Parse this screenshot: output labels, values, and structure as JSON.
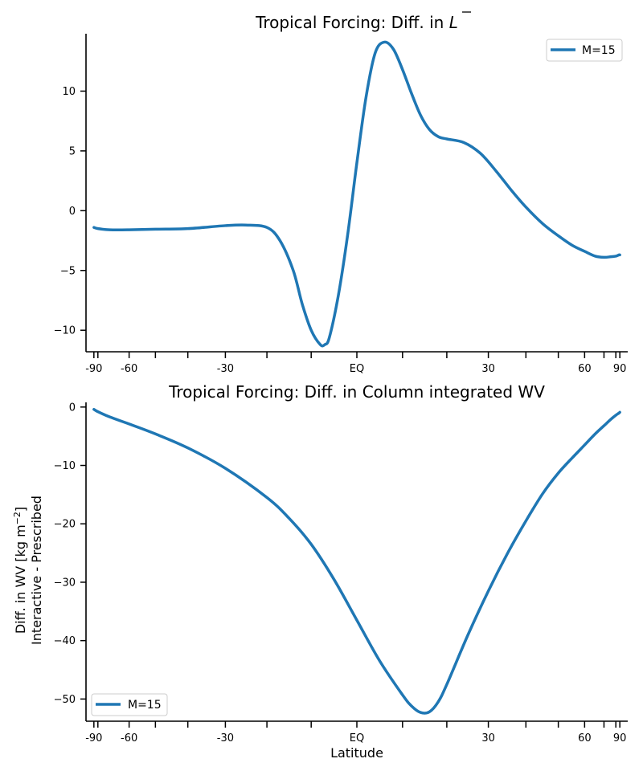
{
  "chart_data": [
    {
      "type": "line",
      "title": "Tropical Forcing: Diff. in ",
      "title_symbol": "L",
      "xlabel": "",
      "ylabel": "",
      "ylim": [
        -11.8,
        14.8
      ],
      "xlim_sine": [
        -1.03,
        1.03
      ],
      "x_scale": "sine of latitude",
      "y_ticks": [
        -10,
        -5,
        0,
        5,
        10
      ],
      "y_tick_labels": [
        "−10",
        "−5",
        "0",
        "5",
        "10"
      ],
      "x_major_ticks": [
        -90,
        -60,
        -30,
        0,
        30,
        60,
        90
      ],
      "x_tick_labels": [
        "-90",
        "-60",
        "-30",
        "EQ",
        "30",
        "60",
        "90"
      ],
      "x_minor_ticks": [
        -80,
        -50,
        -40,
        -20,
        -10,
        10,
        20,
        40,
        50,
        70,
        80
      ],
      "grid": false,
      "legend": {
        "placement": "upper right",
        "entries": [
          "M=15"
        ]
      },
      "series": [
        {
          "name": "M=15",
          "color": "#1f77b4",
          "x": [
            -89,
            -80,
            -70,
            -60,
            -50,
            -40,
            -30,
            -25,
            -20,
            -17,
            -14,
            -12,
            -10,
            -8,
            -7,
            -6,
            -4,
            -2,
            0,
            2,
            4,
            6,
            8,
            10,
            12,
            14,
            16,
            18,
            20,
            24,
            28,
            32,
            36,
            40,
            45,
            50,
            55,
            60,
            65,
            70,
            75,
            80,
            85,
            89
          ],
          "y": [
            -1.4,
            -1.5,
            -1.6,
            -1.6,
            -1.55,
            -1.5,
            -1.25,
            -1.2,
            -1.4,
            -2.5,
            -5.0,
            -7.8,
            -10.0,
            -11.2,
            -11.2,
            -10.6,
            -7.0,
            -2.0,
            4.0,
            9.5,
            13.2,
            14.1,
            13.5,
            11.8,
            9.8,
            8.0,
            6.8,
            6.2,
            6.0,
            5.7,
            4.8,
            3.3,
            1.7,
            0.3,
            -1.1,
            -2.1,
            -2.9,
            -3.4,
            -3.8,
            -3.9,
            -3.85,
            -3.8,
            -3.7,
            -3.7
          ]
        }
      ]
    },
    {
      "type": "line",
      "title": "Tropical Forcing: Diff. in Column integrated WV",
      "xlabel": "Latitude",
      "ylabel_lines": [
        "Diff. in WV [kg m",
        "−2",
        "]",
        "Interactive - Prescribed"
      ],
      "ylim": [
        -53.8,
        0.8
      ],
      "xlim_sine": [
        -1.03,
        1.03
      ],
      "x_scale": "sine of latitude",
      "y_ticks": [
        -50,
        -40,
        -30,
        -20,
        -10,
        0
      ],
      "y_tick_labels": [
        "−50",
        "−40",
        "−30",
        "−20",
        "−10",
        "0"
      ],
      "x_major_ticks": [
        -90,
        -60,
        -30,
        0,
        30,
        60,
        90
      ],
      "x_tick_labels": [
        "-90",
        "-60",
        "-30",
        "EQ",
        "30",
        "60",
        "90"
      ],
      "x_minor_ticks": [
        -80,
        -50,
        -40,
        -20,
        -10,
        10,
        20,
        40,
        50,
        70,
        80
      ],
      "grid": false,
      "legend": {
        "placement": "lower left",
        "entries": [
          "M=15"
        ]
      },
      "series": [
        {
          "name": "M=15",
          "color": "#1f77b4",
          "x": [
            -89,
            -80,
            -70,
            -60,
            -50,
            -40,
            -30,
            -20,
            -15,
            -10,
            -5,
            0,
            5,
            10,
            12,
            14,
            16,
            18,
            20,
            25,
            30,
            35,
            40,
            45,
            50,
            55,
            60,
            65,
            70,
            75,
            80,
            85,
            89
          ],
          "y": [
            -0.4,
            -0.8,
            -1.7,
            -2.9,
            -4.6,
            -7.0,
            -10.5,
            -15.5,
            -19.0,
            -23.5,
            -29.5,
            -36.5,
            -43.5,
            -49.3,
            -51.2,
            -52.3,
            -52.2,
            -50.5,
            -47.5,
            -39.0,
            -31.5,
            -25.0,
            -19.5,
            -14.8,
            -11.3,
            -8.7,
            -6.5,
            -4.6,
            -3.2,
            -2.1,
            -1.4,
            -1.05,
            -0.9
          ]
        }
      ]
    }
  ]
}
